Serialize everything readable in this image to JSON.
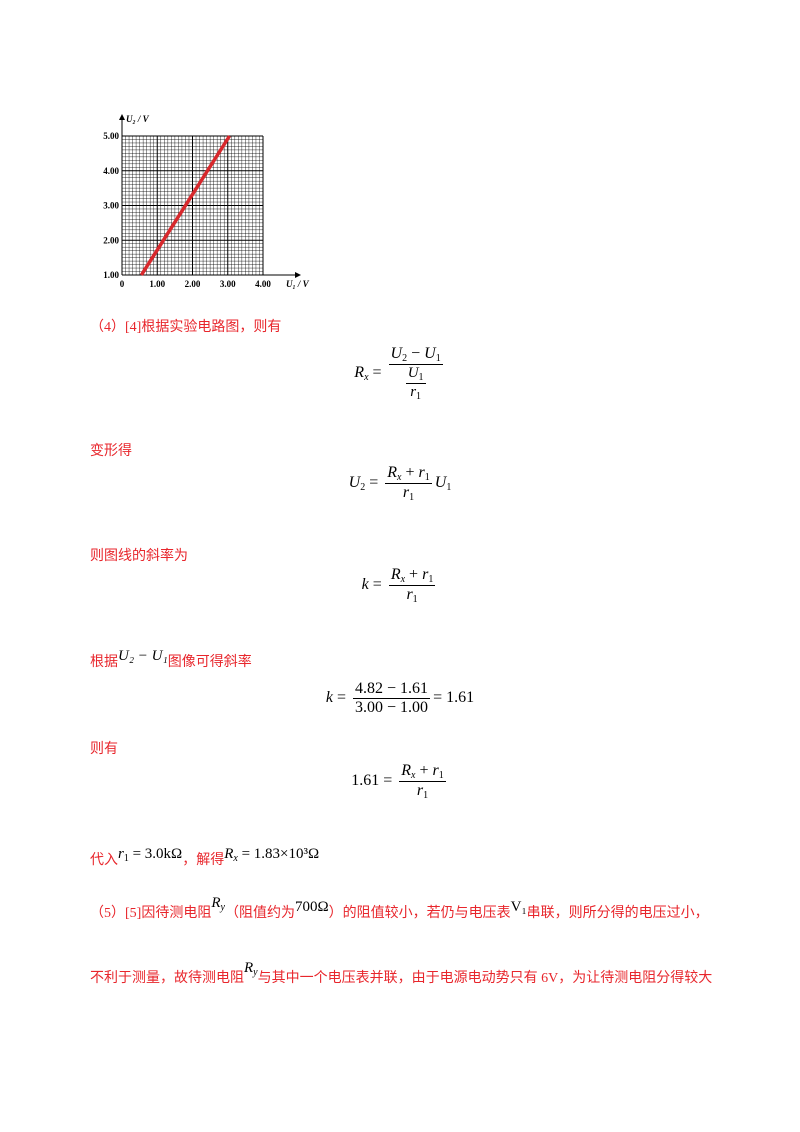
{
  "chart_data": {
    "type": "line",
    "xlabel": "U₁ / V",
    "ylabel": "U₂ / V",
    "xlim": [
      0,
      4.0
    ],
    "ylim": [
      1.0,
      5.0
    ],
    "xticks": [
      "0",
      "1.00",
      "2.00",
      "3.00",
      "4.00"
    ],
    "yticks": [
      "1.00",
      "2.00",
      "3.00",
      "4.00",
      "5.00"
    ],
    "grid": true,
    "series": [
      {
        "color": "#d8282c",
        "x": [
          0.55,
          3.05
        ],
        "y": [
          1.0,
          5.0
        ]
      }
    ]
  },
  "text": {
    "p4": "（4）[4]根据实验电路图，则有",
    "bianxing": "变形得",
    "slope_intro": "则图线的斜率为",
    "genju": "根据",
    "genju_var": "U₂ − U₁",
    "genju_tail": "图像可得斜率",
    "zeyou": "则有",
    "dairu": "代入",
    "r1val": "= 3.0kΩ",
    "jiede": "，解得",
    "rxval": "= 1.83×10³Ω",
    "p5a": "（5）[5]因待测电阻",
    "p5b": "（阻值约为",
    "p5c": "700Ω",
    "p5d": "）的阻值较小，若仍与电压表",
    "p5e": "V₁",
    "p5f": "串联，则所分得的电压过小，",
    "p6a": "不利于测量，故待测电阻",
    "p6b": "与其中一个电压表并联，由于电源电动势只有 6V，为让待测电阻分得较大"
  },
  "eq": {
    "slope_calc_num": "4.82 − 1.61",
    "slope_calc_den": "3.00 − 1.00",
    "slope_result": "= 1.61",
    "coef": "1.61 ="
  },
  "colors": {
    "text_red": "#e8262c",
    "line_red": "#d8282c"
  }
}
